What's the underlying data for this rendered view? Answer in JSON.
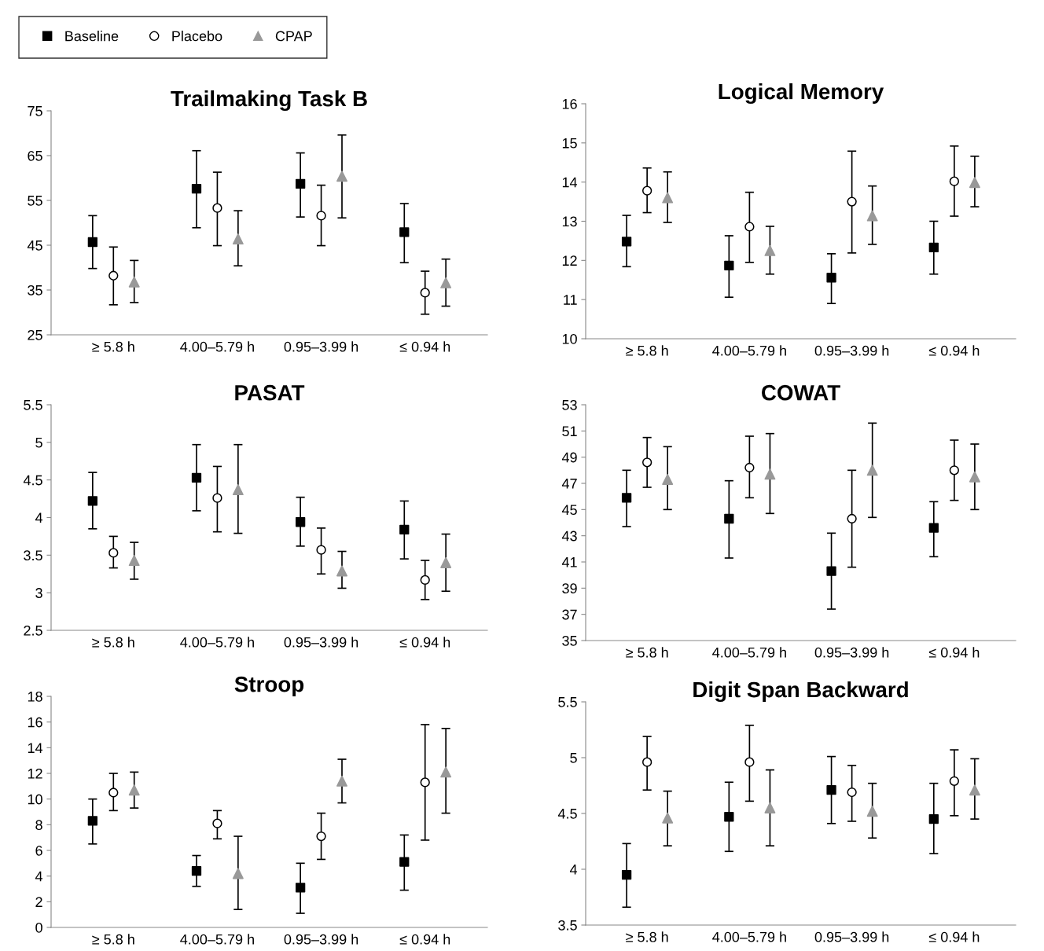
{
  "chart_data": [
    {
      "type": "scatter",
      "title": "Trailmaking Task B",
      "categories": [
        "≥ 5.8 h",
        "4.00–5.79 h",
        "0.95–3.99 h",
        "≤ 0.94 h"
      ],
      "ylim": [
        25,
        75
      ],
      "yticks": [
        25,
        35,
        45,
        55,
        65,
        75
      ],
      "legend": "top left",
      "grid": false,
      "series": [
        {
          "name": "Baseline",
          "color": "#000000",
          "marker": "square",
          "values": [
            45.7,
            57.6,
            58.7,
            47.9
          ],
          "errors": [
            [
              39.8,
              51.6
            ],
            [
              48.9,
              66.1
            ],
            [
              51.3,
              65.6
            ],
            [
              41.1,
              54.3
            ]
          ]
        },
        {
          "name": "Placebo",
          "color": "#000000",
          "marker": "circle",
          "values": [
            38.2,
            53.3,
            51.6,
            34.4
          ],
          "errors": [
            [
              31.7,
              44.6
            ],
            [
              44.9,
              61.3
            ],
            [
              44.9,
              58.4
            ],
            [
              29.6,
              39.2
            ]
          ]
        },
        {
          "name": "CPAP",
          "color": "#999999",
          "marker": "triangle",
          "values": [
            36.8,
            46.4,
            60.4,
            36.6
          ],
          "errors": [
            [
              32.2,
              41.6
            ],
            [
              40.4,
              52.7
            ],
            [
              51.1,
              69.6
            ],
            [
              31.4,
              41.9
            ]
          ]
        }
      ]
    },
    {
      "type": "scatter",
      "title": "Logical Memory",
      "categories": [
        "≥ 5.8 h",
        "4.00–5.79 h",
        "0.95–3.99 h",
        "≤ 0.94 h"
      ],
      "ylim": [
        10,
        16
      ],
      "yticks": [
        10,
        11,
        12,
        13,
        14,
        15,
        16
      ],
      "grid": false,
      "series": [
        {
          "color": "#000000",
          "marker": "square",
          "values": [
            12.48,
            11.87,
            11.56,
            12.33
          ],
          "errors": [
            [
              11.84,
              13.15
            ],
            [
              11.06,
              12.63
            ],
            [
              10.9,
              12.17
            ],
            [
              11.65,
              13.0
            ]
          ]
        },
        {
          "color": "#000000",
          "marker": "circle",
          "values": [
            13.78,
            12.86,
            13.5,
            14.02
          ],
          "errors": [
            [
              13.22,
              14.36
            ],
            [
              11.95,
              13.74
            ],
            [
              12.19,
              14.79
            ],
            [
              13.13,
              14.92
            ]
          ]
        },
        {
          "color": "#999999",
          "marker": "triangle",
          "values": [
            13.6,
            12.25,
            13.14,
            13.99
          ],
          "errors": [
            [
              12.97,
              14.26
            ],
            [
              11.65,
              12.87
            ],
            [
              12.41,
              13.9
            ],
            [
              13.37,
              14.66
            ]
          ]
        }
      ]
    },
    {
      "type": "scatter",
      "title": "PASAT",
      "categories": [
        "≥ 5.8 h",
        "4.00–5.79 h",
        "0.95–3.99 h",
        "≤ 0.94 h"
      ],
      "ylim": [
        2.5,
        5.5
      ],
      "yticks": [
        2.5,
        3,
        3.5,
        4,
        4.5,
        5,
        5.5
      ],
      "grid": false,
      "series": [
        {
          "color": "#000000",
          "marker": "square",
          "values": [
            4.22,
            4.53,
            3.94,
            3.84
          ],
          "errors": [
            [
              3.85,
              4.6
            ],
            [
              4.09,
              4.97
            ],
            [
              3.62,
              4.27
            ],
            [
              3.45,
              4.22
            ]
          ]
        },
        {
          "color": "#000000",
          "marker": "circle",
          "values": [
            3.53,
            4.26,
            3.57,
            3.17
          ],
          "errors": [
            [
              3.33,
              3.75
            ],
            [
              3.81,
              4.68
            ],
            [
              3.25,
              3.86
            ],
            [
              2.91,
              3.43
            ]
          ]
        },
        {
          "color": "#999999",
          "marker": "triangle",
          "values": [
            3.43,
            4.37,
            3.29,
            3.4
          ],
          "errors": [
            [
              3.18,
              3.67
            ],
            [
              3.79,
              4.97
            ],
            [
              3.06,
              3.55
            ],
            [
              3.02,
              3.78
            ]
          ]
        }
      ]
    },
    {
      "type": "scatter",
      "title": "COWAT",
      "categories": [
        "≥ 5.8 h",
        "4.00–5.79 h",
        "0.95–3.99 h",
        "≤ 0.94 h"
      ],
      "ylim": [
        35,
        53
      ],
      "yticks": [
        35,
        37,
        39,
        41,
        43,
        45,
        47,
        49,
        51,
        53
      ],
      "grid": false,
      "series": [
        {
          "color": "#000000",
          "marker": "square",
          "values": [
            45.9,
            44.3,
            40.3,
            43.6
          ],
          "errors": [
            [
              43.7,
              48.0
            ],
            [
              41.3,
              47.2
            ],
            [
              37.4,
              43.2
            ],
            [
              41.4,
              45.6
            ]
          ]
        },
        {
          "color": "#000000",
          "marker": "circle",
          "values": [
            48.6,
            48.2,
            44.3,
            48.0
          ],
          "errors": [
            [
              46.7,
              50.5
            ],
            [
              45.9,
              50.6
            ],
            [
              40.6,
              48.0
            ],
            [
              45.7,
              50.3
            ]
          ]
        },
        {
          "color": "#999999",
          "marker": "triangle",
          "values": [
            47.3,
            47.7,
            48.0,
            47.5
          ],
          "errors": [
            [
              45.0,
              49.8
            ],
            [
              44.7,
              50.8
            ],
            [
              44.4,
              51.6
            ],
            [
              45.0,
              50.0
            ]
          ]
        }
      ]
    },
    {
      "type": "scatter",
      "title": "Stroop",
      "categories": [
        "≥ 5.8 h",
        "4.00–5.79 h",
        "0.95–3.99 h",
        "≤ 0.94 h"
      ],
      "ylim": [
        0,
        18
      ],
      "yticks": [
        0,
        2,
        4,
        6,
        8,
        10,
        12,
        14,
        16,
        18
      ],
      "grid": false,
      "series": [
        {
          "color": "#000000",
          "marker": "square",
          "values": [
            8.3,
            4.4,
            3.1,
            5.1
          ],
          "errors": [
            [
              6.5,
              10.0
            ],
            [
              3.2,
              5.6
            ],
            [
              1.1,
              5.0
            ],
            [
              2.9,
              7.2
            ]
          ]
        },
        {
          "color": "#000000",
          "marker": "circle",
          "values": [
            10.5,
            8.1,
            7.1,
            11.3
          ],
          "errors": [
            [
              9.1,
              12.0
            ],
            [
              6.9,
              9.1
            ],
            [
              5.3,
              8.9
            ],
            [
              6.8,
              15.8
            ]
          ]
        },
        {
          "color": "#999999",
          "marker": "triangle",
          "values": [
            10.7,
            4.2,
            11.4,
            12.1
          ],
          "errors": [
            [
              9.3,
              12.1
            ],
            [
              1.4,
              7.1
            ],
            [
              9.7,
              13.1
            ],
            [
              8.9,
              15.5
            ]
          ]
        }
      ]
    },
    {
      "type": "scatter",
      "title": "Digit Span Backward",
      "categories": [
        "≥ 5.8 h",
        "4.00–5.79 h",
        "0.95–3.99 h",
        "≤ 0.94 h"
      ],
      "ylim": [
        3.5,
        5.5
      ],
      "yticks": [
        3.5,
        4,
        4.5,
        5,
        5.5
      ],
      "grid": false,
      "series": [
        {
          "color": "#000000",
          "marker": "square",
          "values": [
            3.95,
            4.47,
            4.71,
            4.45
          ],
          "errors": [
            [
              3.66,
              4.23
            ],
            [
              4.16,
              4.78
            ],
            [
              4.41,
              5.01
            ],
            [
              4.14,
              4.77
            ]
          ]
        },
        {
          "color": "#000000",
          "marker": "circle",
          "values": [
            4.96,
            4.96,
            4.69,
            4.79
          ],
          "errors": [
            [
              4.71,
              5.19
            ],
            [
              4.61,
              5.29
            ],
            [
              4.43,
              4.93
            ],
            [
              4.48,
              5.07
            ]
          ]
        },
        {
          "color": "#999999",
          "marker": "triangle",
          "values": [
            4.46,
            4.55,
            4.52,
            4.71
          ],
          "errors": [
            [
              4.21,
              4.7
            ],
            [
              4.21,
              4.89
            ],
            [
              4.28,
              4.77
            ],
            [
              4.45,
              4.99
            ]
          ]
        }
      ]
    }
  ]
}
